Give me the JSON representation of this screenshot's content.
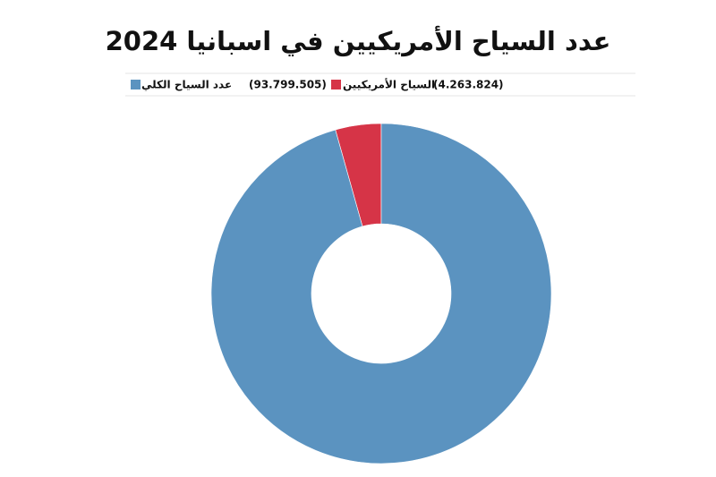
{
  "chart_data": {
    "type": "donut",
    "title": "عدد السياح الأمريكيين في اسبانيا 2024",
    "categories": [
      "السياح الأمريكيين",
      "عدد السياح الكلي"
    ],
    "values": [
      4263824,
      93799505
    ],
    "value_labels": [
      "(4.263.824)",
      "(93.799.505)"
    ],
    "colors": [
      "#d63447",
      "#5b93c0"
    ],
    "direction": "counterclockwise"
  }
}
